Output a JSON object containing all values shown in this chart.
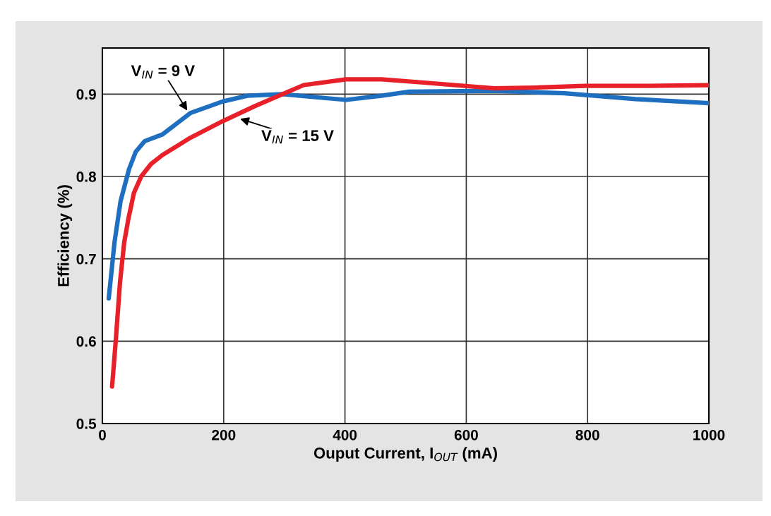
{
  "chart_data": {
    "type": "line",
    "xlabel": "Ouput Current, I$_{OUT}$ (mA)",
    "ylabel": "Efficiency (%)",
    "xlim": [
      0,
      1000
    ],
    "xticks": [
      0,
      200,
      400,
      600,
      800,
      1000
    ],
    "ylim": [
      0.5,
      0.956
    ],
    "yticks": [
      0.5,
      0.6,
      0.7,
      0.8,
      0.9
    ],
    "grid": true,
    "line_style": "solid",
    "marker": "none",
    "series": [
      {
        "color": "#1f6fc0",
        "x": [
          10.5,
          20,
          30,
          44,
          55,
          70,
          99,
          145,
          198,
          239,
          297,
          355,
          402,
          460,
          506,
          646,
          762,
          879,
          1000
        ],
        "values": [
          0.652,
          0.72,
          0.77,
          0.809,
          0.83,
          0.843,
          0.851,
          0.877,
          0.891,
          0.898,
          0.9,
          0.896,
          0.893,
          0.898,
          0.903,
          0.904,
          0.901,
          0.894,
          0.889
        ]
      },
      {
        "color": "#e8202a",
        "x": [
          16,
          22,
          29,
          36,
          43,
          52,
          64,
          80,
          99,
          145,
          198,
          250,
          297,
          332,
          402,
          460,
          530,
          646,
          716,
          797,
          902,
          1000
        ],
        "values": [
          0.545,
          0.6,
          0.671,
          0.72,
          0.749,
          0.78,
          0.8,
          0.815,
          0.826,
          0.847,
          0.867,
          0.885,
          0.9,
          0.911,
          0.918,
          0.918,
          0.914,
          0.907,
          0.908,
          0.91,
          0.91,
          0.911
        ]
      }
    ],
    "annotations": [
      {
        "text": "V$_{IN}$ = 9 V",
        "x": 140,
        "y": 0.88
      },
      {
        "text": "V$_{IN}$ = 15 V",
        "x": 227,
        "y": 0.87
      }
    ]
  }
}
